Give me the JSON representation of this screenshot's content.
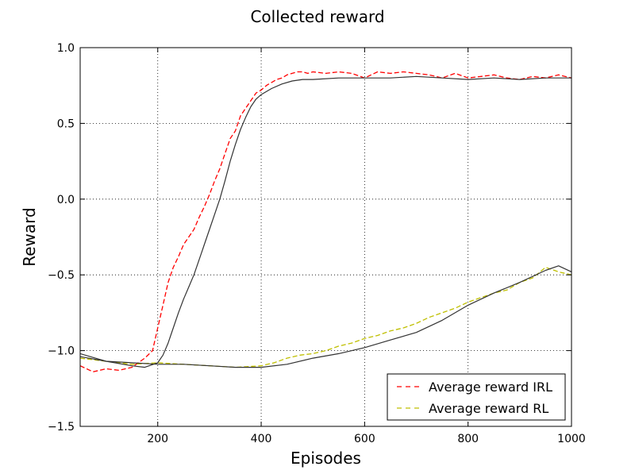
{
  "chart_data": {
    "type": "line",
    "title": "Collected reward",
    "xlabel": "Episodes",
    "ylabel": "Reward",
    "xlim": [
      50,
      1000
    ],
    "ylim": [
      -1.5,
      1.0
    ],
    "xticks": [
      200,
      400,
      600,
      800,
      1000
    ],
    "yticks": [
      -1.5,
      -1.0,
      -0.5,
      0.0,
      0.5,
      1.0
    ],
    "xtick_labels": [
      "200",
      "400",
      "600",
      "800",
      "1000"
    ],
    "ytick_labels": [
      "−1.5",
      "−1.0",
      "−0.5",
      "0.0",
      "0.5",
      "1.0"
    ],
    "grid": true,
    "legend_position": "lower-right",
    "series": [
      {
        "name": "Average reward IRL",
        "color": "#ff0000",
        "style": "dashed",
        "x": [
          50,
          75,
          100,
          125,
          150,
          175,
          190,
          200,
          210,
          220,
          230,
          240,
          250,
          260,
          270,
          280,
          290,
          300,
          310,
          320,
          330,
          340,
          350,
          360,
          370,
          380,
          390,
          400,
          410,
          420,
          430,
          440,
          450,
          460,
          470,
          480,
          490,
          500,
          525,
          550,
          575,
          600,
          625,
          650,
          675,
          700,
          725,
          750,
          775,
          800,
          825,
          850,
          875,
          900,
          925,
          950,
          975,
          1000
        ],
        "y": [
          -1.1,
          -1.14,
          -1.12,
          -1.13,
          -1.11,
          -1.05,
          -1.0,
          -0.85,
          -0.7,
          -0.55,
          -0.45,
          -0.38,
          -0.3,
          -0.25,
          -0.2,
          -0.12,
          -0.05,
          0.03,
          0.12,
          0.2,
          0.3,
          0.4,
          0.45,
          0.55,
          0.6,
          0.65,
          0.7,
          0.72,
          0.75,
          0.77,
          0.79,
          0.8,
          0.82,
          0.83,
          0.84,
          0.84,
          0.83,
          0.84,
          0.83,
          0.84,
          0.83,
          0.8,
          0.84,
          0.83,
          0.84,
          0.83,
          0.82,
          0.8,
          0.83,
          0.8,
          0.81,
          0.82,
          0.8,
          0.79,
          0.81,
          0.8,
          0.82,
          0.8
        ]
      },
      {
        "name": "Average reward RL",
        "color": "#bfbf00",
        "style": "dashed",
        "x": [
          50,
          100,
          150,
          200,
          250,
          300,
          350,
          400,
          425,
          450,
          475,
          500,
          525,
          550,
          575,
          600,
          625,
          650,
          675,
          700,
          725,
          750,
          775,
          800,
          825,
          850,
          875,
          900,
          925,
          950,
          975,
          1000
        ],
        "y": [
          -1.05,
          -1.07,
          -1.09,
          -1.08,
          -1.09,
          -1.1,
          -1.11,
          -1.1,
          -1.08,
          -1.05,
          -1.03,
          -1.02,
          -1.0,
          -0.97,
          -0.95,
          -0.92,
          -0.9,
          -0.87,
          -0.85,
          -0.82,
          -0.78,
          -0.75,
          -0.72,
          -0.68,
          -0.65,
          -0.62,
          -0.6,
          -0.55,
          -0.52,
          -0.45,
          -0.48,
          -0.5
        ]
      },
      {
        "name": "",
        "color": "#333333",
        "style": "solid",
        "x": [
          50,
          100,
          150,
          175,
          200,
          210,
          220,
          230,
          240,
          250,
          260,
          270,
          280,
          290,
          300,
          310,
          320,
          330,
          340,
          350,
          360,
          370,
          380,
          390,
          400,
          420,
          440,
          460,
          480,
          500,
          550,
          600,
          650,
          700,
          750,
          800,
          850,
          900,
          950,
          1000
        ],
        "y": [
          -1.02,
          -1.07,
          -1.1,
          -1.11,
          -1.08,
          -1.03,
          -0.95,
          -0.85,
          -0.75,
          -0.66,
          -0.58,
          -0.5,
          -0.4,
          -0.3,
          -0.2,
          -0.1,
          0.0,
          0.12,
          0.25,
          0.36,
          0.46,
          0.54,
          0.61,
          0.66,
          0.69,
          0.73,
          0.76,
          0.78,
          0.79,
          0.79,
          0.8,
          0.8,
          0.8,
          0.81,
          0.8,
          0.79,
          0.8,
          0.79,
          0.8,
          0.8
        ]
      },
      {
        "name": "",
        "color": "#333333",
        "style": "solid",
        "x": [
          50,
          100,
          150,
          200,
          250,
          300,
          350,
          400,
          450,
          500,
          550,
          600,
          650,
          700,
          750,
          800,
          850,
          900,
          950,
          975,
          1000
        ],
        "y": [
          -1.04,
          -1.07,
          -1.08,
          -1.09,
          -1.09,
          -1.1,
          -1.11,
          -1.11,
          -1.09,
          -1.05,
          -1.02,
          -0.98,
          -0.93,
          -0.88,
          -0.8,
          -0.7,
          -0.62,
          -0.55,
          -0.47,
          -0.44,
          -0.48
        ]
      }
    ]
  }
}
